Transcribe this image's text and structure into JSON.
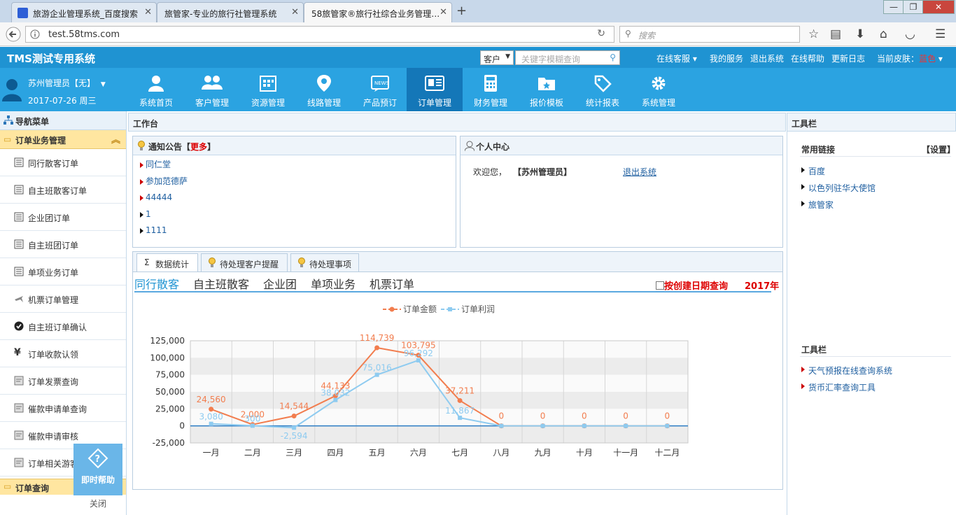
{
  "browser": {
    "tabs": [
      {
        "title": "旅游企业管理系统_百度搜索"
      },
      {
        "title": "旅管家-专业的旅行社管理系统"
      },
      {
        "title": "58旅管家®旅行社综合业务管理…"
      }
    ],
    "url": "test.58tms.com",
    "search_placeholder": "搜索"
  },
  "header": {
    "title": "TMS测试专用系统",
    "search_type": "客户",
    "search_placeholder": "关键字模糊查询",
    "links": [
      "在线客服",
      "我的服务",
      "退出系统",
      "在线帮助",
      "更新日志"
    ],
    "skin_label": "当前皮肤：",
    "skin_value": "蓝色"
  },
  "user": {
    "name": "苏州管理员【无】",
    "date": "2017-07-26 周三"
  },
  "menu": [
    {
      "label": "系统首页",
      "icon": "user-icon"
    },
    {
      "label": "客户管理",
      "icon": "users-icon"
    },
    {
      "label": "资源管理",
      "icon": "building-icon"
    },
    {
      "label": "线路管理",
      "icon": "location-pin-icon"
    },
    {
      "label": "产品预订",
      "icon": "news-icon"
    },
    {
      "label": "订单管理",
      "icon": "order-icon"
    },
    {
      "label": "财务管理",
      "icon": "calculator-icon"
    },
    {
      "label": "报价模板",
      "icon": "folder-star-icon"
    },
    {
      "label": "统计报表",
      "icon": "tag-icon"
    },
    {
      "label": "系统管理",
      "icon": "gear-icon"
    }
  ],
  "sidebar": {
    "nav_title": "导航菜单",
    "group_title": "订单业务管理",
    "items": [
      "同行散客订单",
      "自主班散客订单",
      "企业团订单",
      "自主班团订单",
      "单项业务订单",
      "机票订单管理",
      "自主班订单确认",
      "订单收款认领",
      "订单发票查询",
      "催款申请单查询",
      "催款申请审核",
      "订单相关游客"
    ],
    "bottom_group": "订单查询",
    "help_label": "即时帮助",
    "close_label": "关闭"
  },
  "workspace": {
    "title": "工作台",
    "notice": {
      "title": "通知公告",
      "more": "更多",
      "items": [
        "同仁堂",
        "参加范德萨",
        "44444",
        "1",
        "1111"
      ]
    },
    "personal": {
      "title": "个人中心",
      "welcome": "欢迎您，",
      "user": "【苏州管理员】",
      "logout": "退出系统"
    },
    "stats_tabs": [
      "数据统计",
      "待处理客户提醒",
      "待处理事项"
    ],
    "categories": [
      "同行散客",
      "自主班散客",
      "企业团",
      "单项业务",
      "机票订单"
    ],
    "date_filter": "按创建日期查询",
    "year": "2017年"
  },
  "chart_data": {
    "type": "line",
    "categories": [
      "一月",
      "二月",
      "三月",
      "四月",
      "五月",
      "六月",
      "七月",
      "八月",
      "九月",
      "十月",
      "十一月",
      "十二月"
    ],
    "series": [
      {
        "name": "订单金额",
        "color": "#f27d4e",
        "values": [
          24560,
          2000,
          14544,
          44133,
          114739,
          103795,
          37211,
          0,
          0,
          0,
          0,
          0
        ]
      },
      {
        "name": "订单利润",
        "color": "#8ecbf0",
        "values": [
          3080,
          300,
          -2594,
          38032,
          75016,
          96292,
          11867,
          0,
          0,
          0,
          0,
          0
        ]
      }
    ],
    "series_labels": [
      [
        "24,560",
        "2,000",
        "14,544",
        "44,133",
        "114,739",
        "103,795",
        "37,211",
        "0",
        "0",
        "0",
        "0",
        "0"
      ],
      [
        "3,080",
        "300",
        "-2,594",
        "38,032",
        "75,016",
        "96,292",
        "11,867",
        "",
        "",
        "",
        "",
        ""
      ]
    ],
    "y_ticks": [
      "125,000",
      "100,000",
      "75,000",
      "50,000",
      "25,000",
      "0",
      "-25,000"
    ],
    "ylim": [
      -25000,
      125000
    ],
    "grid": true,
    "legend": "top-center"
  },
  "rightbar": {
    "title": "工具栏",
    "links_title": "常用链接",
    "settings": "【设置】",
    "links": [
      "百度",
      "以色列驻华大使馆",
      "旅管家"
    ],
    "tools_title": "工具栏",
    "tools": [
      "天气预报在线查询系统",
      "货币汇率查询工具"
    ]
  }
}
